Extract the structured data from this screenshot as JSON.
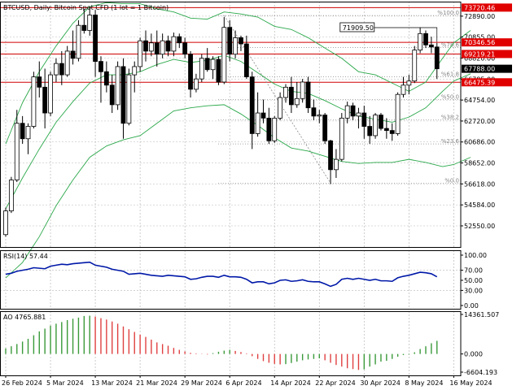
{
  "title": "BTCUSD, Daily:  Bitcoin Spot CFD (1 lot = 1 Bitcoin)",
  "colors": {
    "up": "#ffffff",
    "down": "#000000",
    "hline": "#d00000",
    "band": "#2aa84a",
    "rsi": "#0018a8",
    "ao_up": "#3a9a3a",
    "ao_down": "#e04040",
    "grid": "#b8b8b8",
    "tag_red": "#e00000",
    "tag_black": "#000000",
    "fib": "#888888"
  },
  "chart_data": [
    {
      "type": "candlestick",
      "panel": "price",
      "ylim": [
        50500,
        74300
      ],
      "y_ticks": [
        {
          "v": 72890.0,
          "label": "72890.00"
        },
        {
          "v": 70855.0,
          "label": "70855.00"
        },
        {
          "v": 68820.0,
          "label": "68820.00"
        },
        {
          "v": 66785.0,
          "label": "66785.00"
        },
        {
          "v": 64754.0,
          "label": "64754.00"
        },
        {
          "v": 62720.0,
          "label": "62720.00"
        },
        {
          "v": 60686.0,
          "label": "60686.00"
        },
        {
          "v": 58652.0,
          "label": "58652.00"
        },
        {
          "v": 56618.0,
          "label": "56618.00"
        },
        {
          "v": 54584.0,
          "label": "54584.00"
        },
        {
          "v": 52550.0,
          "label": "52550.00"
        }
      ],
      "price_tags": [
        {
          "v": 73720.46,
          "label": "73720.46",
          "style": "red"
        },
        {
          "v": 70346.56,
          "label": "70346.56",
          "style": "red"
        },
        {
          "v": 69219.21,
          "label": "69219.21",
          "style": "red"
        },
        {
          "v": 67788.0,
          "label": "67788.00",
          "style": "black"
        },
        {
          "v": 66475.39,
          "label": "66475.39",
          "style": "red"
        }
      ],
      "horizontal_lines": [
        73720.46,
        70346.56,
        69219.21,
        66475.39
      ],
      "fib_levels": [
        {
          "v": 72950,
          "label": "%100.0"
        },
        {
          "v": 69850,
          "label": "%78.6"
        },
        {
          "v": 67000,
          "label": "%61.8"
        },
        {
          "v": 64800,
          "label": "%50.0"
        },
        {
          "v": 62850,
          "label": "%38.2"
        },
        {
          "v": 60500,
          "label": "%23.6"
        },
        {
          "v": 56700,
          "label": "%0.0"
        }
      ],
      "annotation": {
        "label": "71909.50",
        "x_index": 60
      },
      "x_labels": [
        {
          "i": 0,
          "label": "26 Feb 2024"
        },
        {
          "i": 8,
          "label": "5 Mar 2024"
        },
        {
          "i": 16,
          "label": "13 Mar 2024"
        },
        {
          "i": 24,
          "label": "21 Mar 2024"
        },
        {
          "i": 32,
          "label": "29 Mar 2024"
        },
        {
          "i": 40,
          "label": "6 Apr 2024"
        },
        {
          "i": 48,
          "label": "14 Apr 2024"
        },
        {
          "i": 56,
          "label": "22 Apr 2024"
        },
        {
          "i": 64,
          "label": "30 Apr 2024"
        },
        {
          "i": 72,
          "label": "8 May 2024"
        },
        {
          "i": 80,
          "label": "16 May 2024"
        }
      ],
      "candles": [
        [
          51700,
          54300,
          51500,
          54000
        ],
        [
          54000,
          57300,
          53800,
          57000
        ],
        [
          57000,
          63800,
          56800,
          62500
        ],
        [
          62500,
          63200,
          60500,
          61000
        ],
        [
          61000,
          62500,
          59500,
          62200
        ],
        [
          62200,
          67500,
          62000,
          67000
        ],
        [
          67000,
          68500,
          65000,
          66000
        ],
        [
          66000,
          67800,
          62000,
          63500
        ],
        [
          63500,
          67500,
          63200,
          67200
        ],
        [
          67200,
          68800,
          66500,
          68300
        ],
        [
          68300,
          69500,
          66200,
          67200
        ],
        [
          67200,
          70000,
          67000,
          69500
        ],
        [
          69500,
          71500,
          68200,
          68800
        ],
        [
          68800,
          72500,
          68500,
          72000
        ],
        [
          72000,
          73600,
          71200,
          71500
        ],
        [
          71500,
          73800,
          71000,
          73000
        ],
        [
          73000,
          73500,
          67000,
          68500
        ],
        [
          68500,
          69000,
          64500,
          67500
        ],
        [
          67500,
          68500,
          65500,
          66200
        ],
        [
          66200,
          67200,
          63500,
          64300
        ],
        [
          64300,
          68500,
          63800,
          68000
        ],
        [
          68000,
          68800,
          61000,
          62500
        ],
        [
          62500,
          67800,
          62300,
          67200
        ],
        [
          67200,
          68500,
          65500,
          68000
        ],
        [
          68000,
          70800,
          67500,
          70500
        ],
        [
          70500,
          71500,
          68500,
          69500
        ],
        [
          69500,
          71200,
          69000,
          70300
        ],
        [
          70300,
          71500,
          68000,
          69200
        ],
        [
          69200,
          71200,
          68800,
          70500
        ],
        [
          70500,
          71000,
          69000,
          69500
        ],
        [
          69500,
          71300,
          69000,
          70900
        ],
        [
          70900,
          71200,
          69800,
          70300
        ],
        [
          70300,
          70800,
          68800,
          69200
        ],
        [
          69200,
          69500,
          65000,
          65800
        ],
        [
          65800,
          67300,
          65500,
          66800
        ],
        [
          66800,
          69200,
          66500,
          68800
        ],
        [
          68800,
          69800,
          67500,
          67700
        ],
        [
          67700,
          69000,
          66800,
          68700
        ],
        [
          68700,
          69000,
          66200,
          66500
        ],
        [
          66500,
          72800,
          66300,
          71800
        ],
        [
          71800,
          72500,
          68500,
          69200
        ],
        [
          69200,
          71500,
          68800,
          70800
        ],
        [
          70800,
          71000,
          69500,
          70200
        ],
        [
          70200,
          71000,
          66800,
          67000
        ],
        [
          67000,
          67500,
          60000,
          61500
        ],
        [
          61500,
          65500,
          61200,
          63500
        ],
        [
          63500,
          64800,
          62500,
          63000
        ],
        [
          63000,
          64000,
          60500,
          60800
        ],
        [
          60800,
          63200,
          60600,
          63000
        ],
        [
          63000,
          65500,
          62800,
          65000
        ],
        [
          65000,
          66300,
          64500,
          66000
        ],
        [
          66000,
          67000,
          63500,
          64300
        ],
        [
          64300,
          66500,
          64000,
          64900
        ],
        [
          64900,
          66800,
          64500,
          66500
        ],
        [
          66500,
          67000,
          63500,
          64000
        ],
        [
          64000,
          64800,
          62800,
          63200
        ],
        [
          63200,
          63800,
          62500,
          63300
        ],
        [
          63300,
          63500,
          60500,
          60800
        ],
        [
          60800,
          60900,
          56600,
          58000
        ],
        [
          58000,
          60000,
          57200,
          59000
        ],
        [
          59000,
          63500,
          58800,
          63000
        ],
        [
          63000,
          64600,
          62500,
          64200
        ],
        [
          64200,
          64500,
          62800,
          63200
        ],
        [
          63200,
          64000,
          62000,
          63500
        ],
        [
          63500,
          64200,
          61000,
          62200
        ],
        [
          62200,
          63200,
          60500,
          61300
        ],
        [
          61300,
          63500,
          61000,
          63300
        ],
        [
          63300,
          63500,
          61800,
          62000
        ],
        [
          62000,
          63000,
          61000,
          61800
        ],
        [
          61800,
          62500,
          60800,
          61500
        ],
        [
          61500,
          65500,
          61300,
          65300
        ],
        [
          65300,
          67000,
          65000,
          66200
        ],
        [
          66200,
          67200,
          65300,
          66600
        ],
        [
          66600,
          70000,
          66400,
          69600
        ],
        [
          69600,
          71800,
          69300,
          71200
        ],
        [
          71200,
          71500,
          69800,
          70100
        ],
        [
          70100,
          70900,
          69300,
          69900
        ],
        [
          69900,
          70300,
          66800,
          67788
        ]
      ],
      "bands": {
        "upper": [
          [
            0,
            60500
          ],
          [
            3,
            64500
          ],
          [
            6,
            67500
          ],
          [
            9,
            70000
          ],
          [
            12,
            72200
          ],
          [
            15,
            73800
          ],
          [
            18,
            74200
          ],
          [
            21,
            74100
          ],
          [
            24,
            74100
          ],
          [
            27,
            73600
          ],
          [
            30,
            73300
          ],
          [
            33,
            72700
          ],
          [
            36,
            72600
          ],
          [
            39,
            73300
          ],
          [
            42,
            73100
          ],
          [
            45,
            72800
          ],
          [
            48,
            71900
          ],
          [
            51,
            71600
          ],
          [
            54,
            70800
          ],
          [
            57,
            69800
          ],
          [
            60,
            68800
          ],
          [
            63,
            67500
          ],
          [
            66,
            67200
          ],
          [
            69,
            66400
          ],
          [
            72,
            65600
          ],
          [
            75,
            66500
          ],
          [
            78,
            68800
          ],
          [
            80,
            70300
          ],
          [
            83,
            71500
          ]
        ],
        "middle": [
          [
            0,
            54200
          ],
          [
            3,
            57200
          ],
          [
            6,
            60000
          ],
          [
            9,
            62600
          ],
          [
            12,
            64600
          ],
          [
            15,
            66400
          ],
          [
            18,
            67200
          ],
          [
            21,
            67200
          ],
          [
            24,
            67500
          ],
          [
            27,
            68200
          ],
          [
            30,
            68700
          ],
          [
            33,
            68400
          ],
          [
            36,
            68600
          ],
          [
            39,
            69100
          ],
          [
            42,
            68500
          ],
          [
            45,
            67400
          ],
          [
            48,
            66300
          ],
          [
            51,
            65600
          ],
          [
            54,
            65400
          ],
          [
            57,
            64700
          ],
          [
            60,
            63900
          ],
          [
            63,
            63200
          ],
          [
            66,
            62900
          ],
          [
            69,
            62600
          ],
          [
            72,
            63100
          ],
          [
            75,
            64000
          ],
          [
            78,
            65600
          ],
          [
            80,
            66600
          ],
          [
            83,
            67300
          ]
        ],
        "lower": [
          [
            0,
            47500
          ],
          [
            3,
            49000
          ],
          [
            6,
            51500
          ],
          [
            9,
            54500
          ],
          [
            12,
            57000
          ],
          [
            15,
            59200
          ],
          [
            18,
            60300
          ],
          [
            21,
            60900
          ],
          [
            24,
            61300
          ],
          [
            27,
            62500
          ],
          [
            30,
            63700
          ],
          [
            33,
            64000
          ],
          [
            36,
            64200
          ],
          [
            39,
            64300
          ],
          [
            42,
            63400
          ],
          [
            45,
            62300
          ],
          [
            48,
            61100
          ],
          [
            51,
            60100
          ],
          [
            54,
            59800
          ],
          [
            57,
            59300
          ],
          [
            60,
            58800
          ],
          [
            63,
            58600
          ],
          [
            66,
            58700
          ],
          [
            69,
            58700
          ],
          [
            72,
            59000
          ],
          [
            75,
            58700
          ],
          [
            78,
            58300
          ],
          [
            80,
            58500
          ],
          [
            83,
            59200
          ]
        ]
      }
    },
    {
      "type": "line",
      "panel": "rsi",
      "title": "RSI(14) 57.44",
      "ylim": [
        0,
        100
      ],
      "y_ticks": [
        {
          "v": 100,
          "label": "100.00"
        },
        {
          "v": 70,
          "label": "70.00"
        },
        {
          "v": 50,
          "label": "50.00"
        },
        {
          "v": 30,
          "label": "30.00"
        },
        {
          "v": 0,
          "label": "0.00"
        }
      ],
      "values": [
        62,
        64,
        68,
        70,
        72,
        75,
        74,
        73,
        78,
        80,
        82,
        81,
        83,
        84,
        85,
        86,
        80,
        78,
        76,
        72,
        70,
        68,
        62,
        63,
        64,
        62,
        60,
        59,
        58,
        60,
        59,
        58,
        57,
        52,
        53,
        56,
        58,
        58,
        56,
        60,
        57,
        57,
        56,
        52,
        45,
        47,
        47,
        43,
        45,
        50,
        51,
        48,
        49,
        51,
        48,
        47,
        47,
        43,
        38,
        42,
        52,
        54,
        52,
        54,
        52,
        50,
        52,
        49,
        49,
        48,
        55,
        58,
        60,
        63,
        66,
        65,
        63,
        57
      ]
    },
    {
      "type": "bar",
      "panel": "ao",
      "title": "AO 4765.881",
      "ylim": [
        -6604.193,
        14361.507
      ],
      "y_ticks": [
        {
          "v": 14361.507,
          "label": "14361.507"
        },
        {
          "v": 0,
          "label": "0.000"
        },
        {
          "v": -6604.193,
          "label": "-6604.193"
        }
      ],
      "values": [
        2000,
        2800,
        3600,
        4500,
        5500,
        6800,
        8200,
        9200,
        10300,
        11000,
        11600,
        12300,
        12800,
        13200,
        13800,
        13900,
        13600,
        13000,
        12500,
        11800,
        11000,
        10000,
        9000,
        8000,
        7000,
        6200,
        5200,
        4200,
        3600,
        3000,
        2200,
        1500,
        900,
        400,
        200,
        -100,
        -200,
        300,
        800,
        1200,
        1500,
        1100,
        700,
        200,
        -800,
        -1800,
        -2600,
        -3200,
        -3600,
        -3800,
        -3700,
        -3300,
        -2800,
        -2300,
        -2000,
        -1800,
        -1600,
        -2300,
        -3200,
        -4000,
        -4600,
        -5200,
        -5500,
        -5800,
        -5600,
        -4600,
        -3800,
        -2800,
        -2500,
        -1800,
        -1000,
        -400,
        -200,
        600,
        1800,
        2800,
        3900,
        4765
      ]
    }
  ]
}
